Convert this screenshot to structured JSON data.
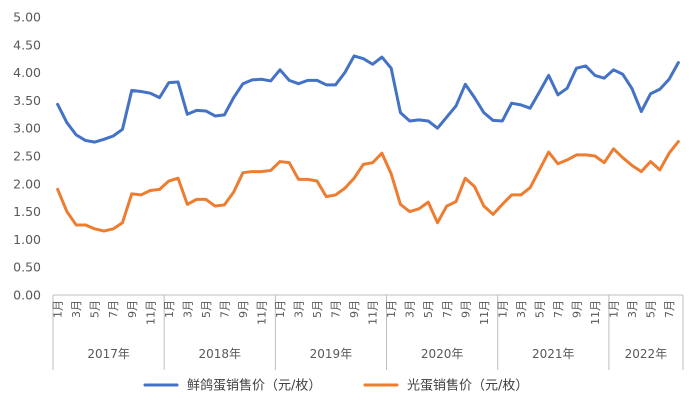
{
  "chart_data": {
    "type": "line",
    "title": "",
    "xlabel": "",
    "ylabel": "",
    "ylim": [
      0,
      5
    ],
    "yticks": [
      "0.00",
      "0.50",
      "1.00",
      "1.50",
      "2.00",
      "2.50",
      "3.00",
      "3.50",
      "4.00",
      "4.50",
      "5.00"
    ],
    "grid": false,
    "legend_position": "bottom",
    "years": [
      {
        "label": "2017年",
        "months": 12
      },
      {
        "label": "2018年",
        "months": 12
      },
      {
        "label": "2019年",
        "months": 12
      },
      {
        "label": "2020年",
        "months": 12
      },
      {
        "label": "2021年",
        "months": 12
      },
      {
        "label": "2022年",
        "months": 8
      }
    ],
    "month_tick_labels": [
      "1月",
      "3月",
      "5月",
      "7月",
      "9月",
      "11月"
    ],
    "series": [
      {
        "name": "鲜鸽蛋销售价（元/枚）",
        "color": "#4472C4",
        "values": [
          3.43,
          3.1,
          2.88,
          2.78,
          2.75,
          2.8,
          2.86,
          2.98,
          3.68,
          3.66,
          3.63,
          3.55,
          3.82,
          3.83,
          3.25,
          3.32,
          3.31,
          3.22,
          3.24,
          3.55,
          3.8,
          3.87,
          3.88,
          3.85,
          4.05,
          3.86,
          3.8,
          3.86,
          3.86,
          3.78,
          3.78,
          4.0,
          4.3,
          4.25,
          4.15,
          4.28,
          4.08,
          3.28,
          3.13,
          3.15,
          3.13,
          3.0,
          3.2,
          3.4,
          3.79,
          3.55,
          3.28,
          3.14,
          3.13,
          3.45,
          3.42,
          3.36,
          3.65,
          3.95,
          3.6,
          3.72,
          4.08,
          4.12,
          3.95,
          3.9,
          4.05,
          3.97,
          3.71,
          3.3,
          3.62,
          3.7,
          3.88,
          4.18
        ]
      },
      {
        "name": "光蛋销售价（元/枚）",
        "color": "#ED7D31",
        "values": [
          1.9,
          1.5,
          1.26,
          1.26,
          1.19,
          1.15,
          1.19,
          1.3,
          1.82,
          1.8,
          1.88,
          1.9,
          2.05,
          2.1,
          1.63,
          1.72,
          1.72,
          1.6,
          1.62,
          1.85,
          2.2,
          2.22,
          2.22,
          2.24,
          2.4,
          2.38,
          2.08,
          2.08,
          2.05,
          1.77,
          1.8,
          1.92,
          2.1,
          2.35,
          2.38,
          2.55,
          2.18,
          1.63,
          1.5,
          1.55,
          1.67,
          1.3,
          1.6,
          1.68,
          2.1,
          1.95,
          1.6,
          1.45,
          1.63,
          1.8,
          1.8,
          1.93,
          2.25,
          2.57,
          2.36,
          2.43,
          2.52,
          2.52,
          2.5,
          2.38,
          2.63,
          2.47,
          2.33,
          2.22,
          2.4,
          2.25,
          2.55,
          2.76
        ]
      }
    ]
  }
}
